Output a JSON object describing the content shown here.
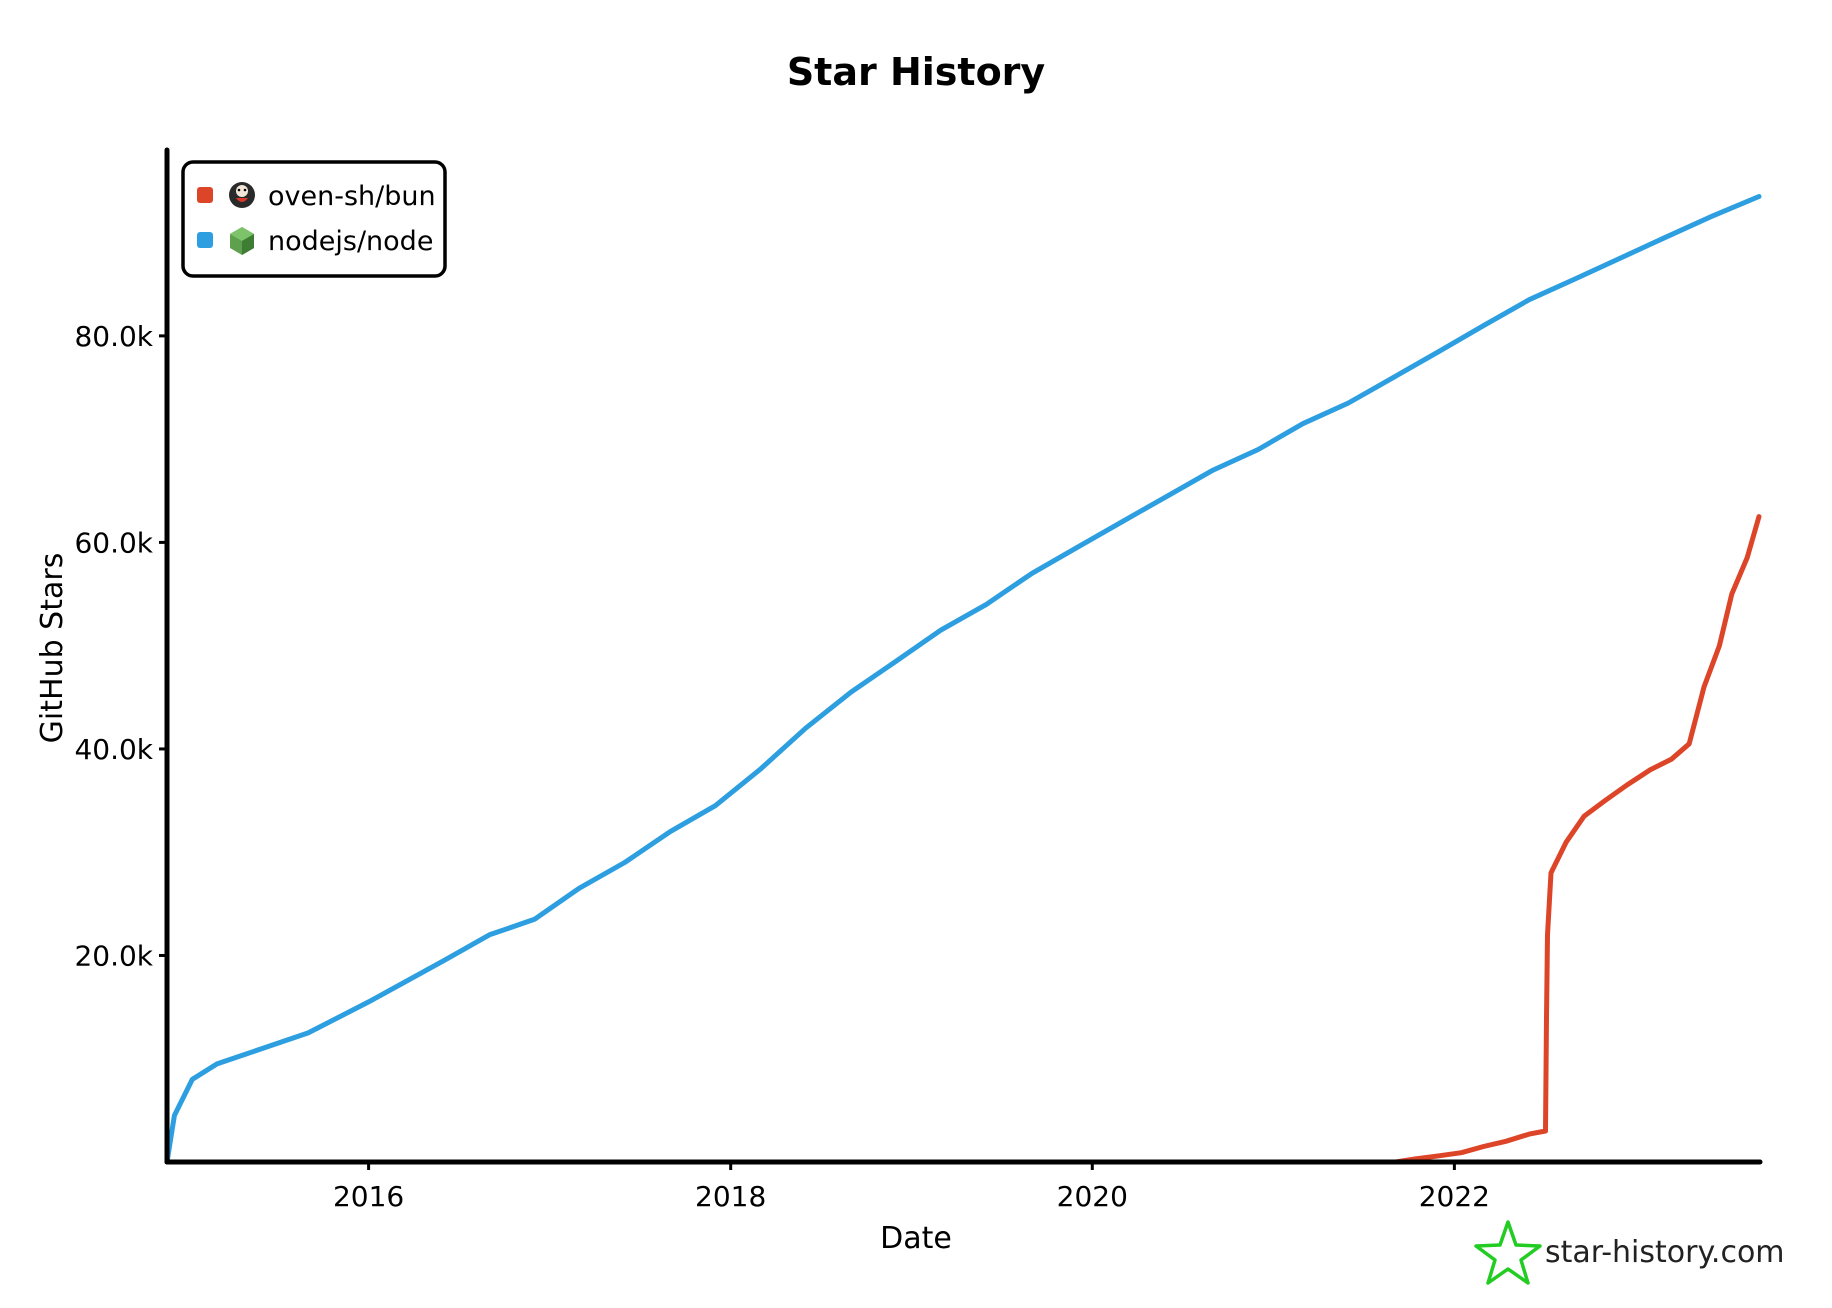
{
  "chart_data": {
    "type": "line",
    "title": "Star History",
    "xlabel": "Date",
    "ylabel": "GitHub Stars",
    "x_ticks": [
      "2016",
      "2018",
      "2020",
      "2022"
    ],
    "y_ticks": [
      "20.0k",
      "40.0k",
      "60.0k",
      "80.0k"
    ],
    "xlim": [
      "2014-11-20",
      "2023-09-10"
    ],
    "ylim": [
      0,
      98000
    ],
    "legend_position": "top-left",
    "grid": false,
    "series": [
      {
        "name": "oven-sh/bun",
        "color": "#dd4528",
        "icon": "bun-avatar-icon",
        "points": [
          [
            "2021-09-05",
            0
          ],
          [
            "2021-10-15",
            300
          ],
          [
            "2021-12-01",
            600
          ],
          [
            "2022-01-15",
            900
          ],
          [
            "2022-03-01",
            1500
          ],
          [
            "2022-04-15",
            2000
          ],
          [
            "2022-06-01",
            2700
          ],
          [
            "2022-07-04",
            3000
          ],
          [
            "2022-07-06",
            14000
          ],
          [
            "2022-07-08",
            22000
          ],
          [
            "2022-07-15",
            28000
          ],
          [
            "2022-08-15",
            31000
          ],
          [
            "2022-09-20",
            33500
          ],
          [
            "2022-11-01",
            35000
          ],
          [
            "2022-12-15",
            36500
          ],
          [
            "2023-02-01",
            38000
          ],
          [
            "2023-03-15",
            39000
          ],
          [
            "2023-04-20",
            40500
          ],
          [
            "2023-05-20",
            46000
          ],
          [
            "2023-06-20",
            50000
          ],
          [
            "2023-07-15",
            55000
          ],
          [
            "2023-08-15",
            58500
          ],
          [
            "2023-09-08",
            62500
          ]
        ]
      },
      {
        "name": "nodejs/node",
        "color": "#2d9fe0",
        "icon": "nodejs-hexagon-icon",
        "points": [
          [
            "2014-11-20",
            0
          ],
          [
            "2014-12-05",
            4500
          ],
          [
            "2015-01-10",
            8000
          ],
          [
            "2015-03-01",
            9500
          ],
          [
            "2015-06-01",
            11000
          ],
          [
            "2015-09-01",
            12500
          ],
          [
            "2016-01-01",
            15500
          ],
          [
            "2016-06-01",
            19500
          ],
          [
            "2016-09-01",
            22000
          ],
          [
            "2016-12-01",
            23500
          ],
          [
            "2017-03-01",
            26500
          ],
          [
            "2017-06-01",
            29000
          ],
          [
            "2017-09-01",
            32000
          ],
          [
            "2017-12-01",
            34500
          ],
          [
            "2018-03-01",
            38000
          ],
          [
            "2018-06-01",
            42000
          ],
          [
            "2018-09-01",
            45500
          ],
          [
            "2018-12-01",
            48500
          ],
          [
            "2019-03-01",
            51500
          ],
          [
            "2019-06-01",
            54000
          ],
          [
            "2019-09-01",
            57000
          ],
          [
            "2019-12-01",
            59500
          ],
          [
            "2020-03-01",
            62000
          ],
          [
            "2020-06-01",
            64500
          ],
          [
            "2020-09-01",
            67000
          ],
          [
            "2020-12-01",
            69000
          ],
          [
            "2021-03-01",
            71500
          ],
          [
            "2021-06-01",
            73500
          ],
          [
            "2021-09-01",
            76000
          ],
          [
            "2021-12-01",
            78500
          ],
          [
            "2022-03-01",
            81000
          ],
          [
            "2022-06-01",
            83500
          ],
          [
            "2022-09-01",
            85500
          ],
          [
            "2022-12-01",
            87500
          ],
          [
            "2023-03-01",
            89500
          ],
          [
            "2023-06-01",
            91500
          ],
          [
            "2023-09-08",
            93500
          ]
        ]
      }
    ]
  },
  "watermark": {
    "text": "star-history.com",
    "icon": "star-history-logo-icon",
    "color": "#22cc22"
  }
}
